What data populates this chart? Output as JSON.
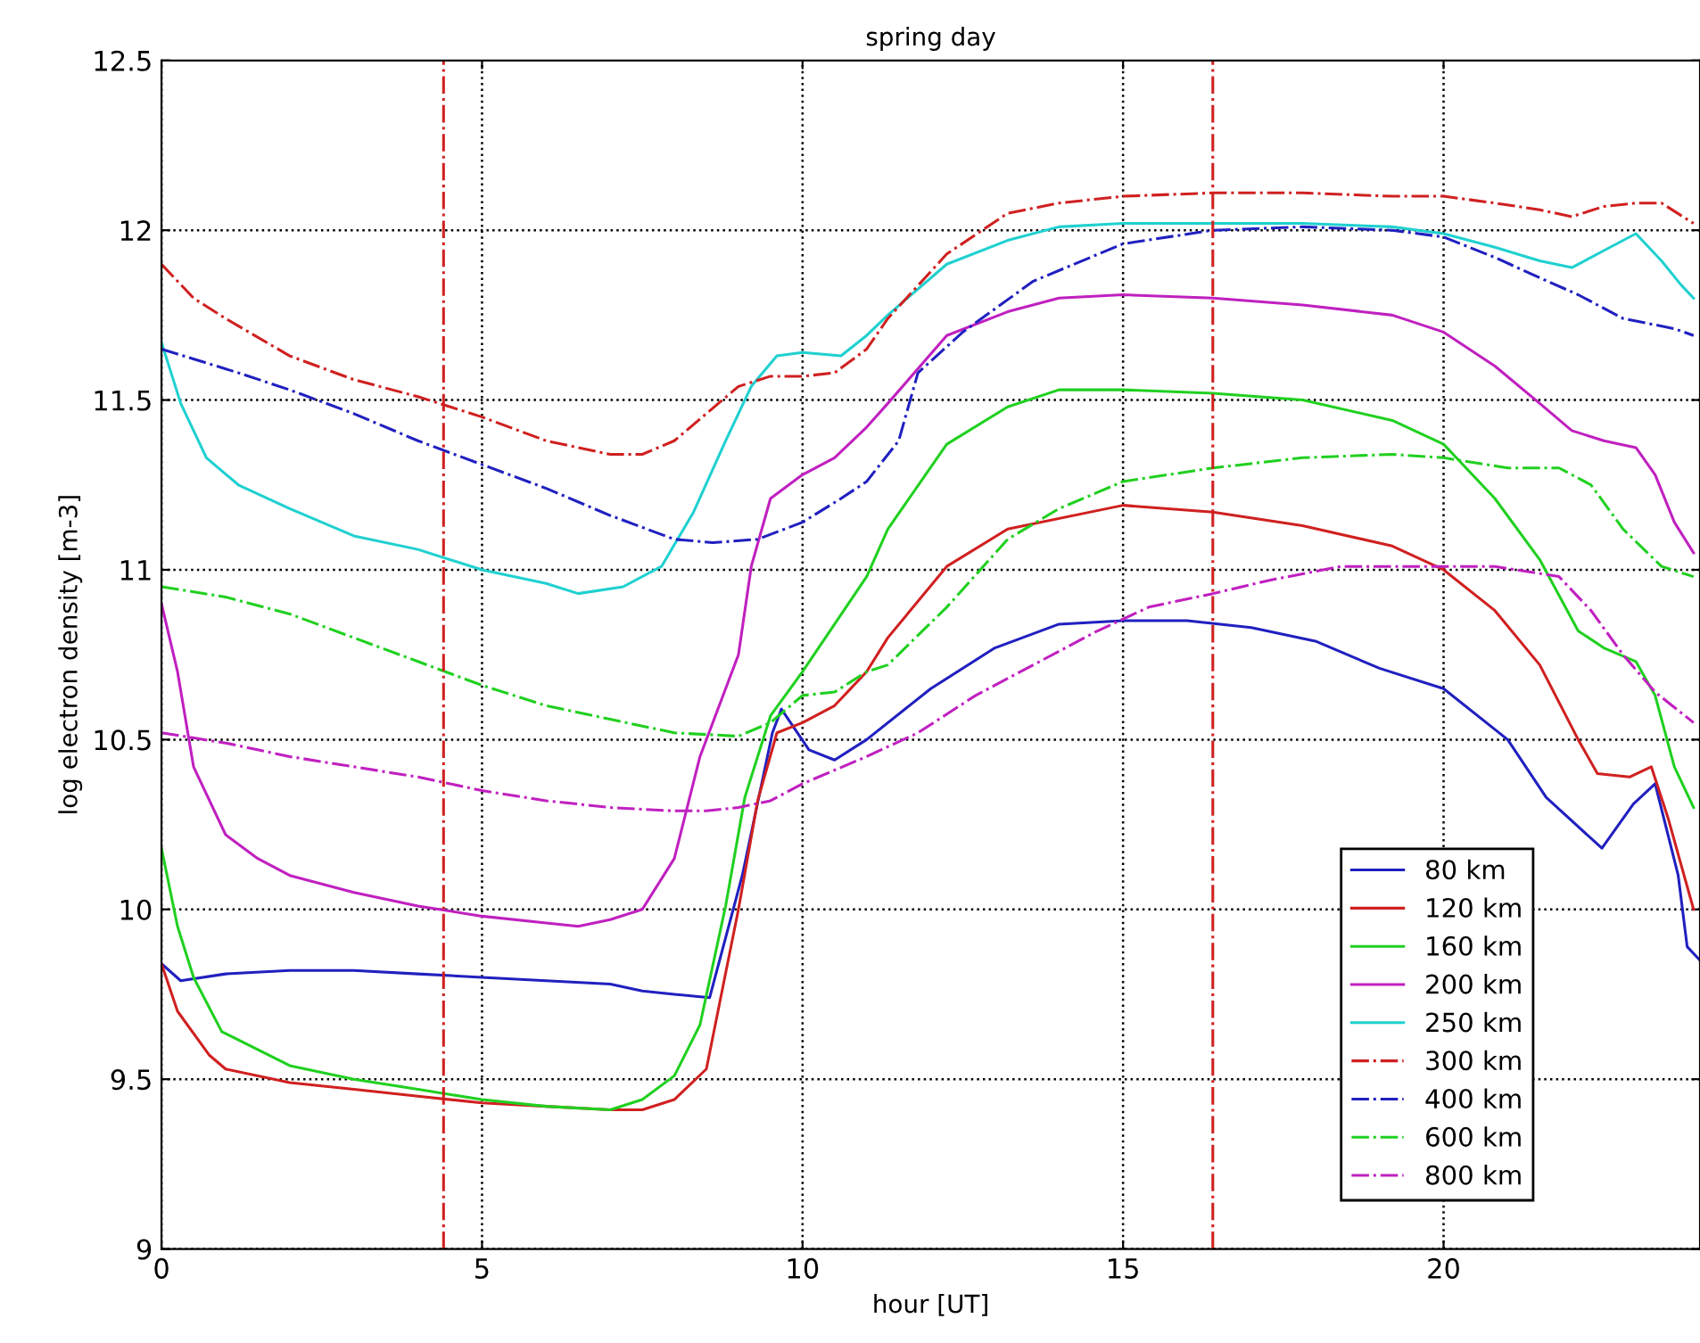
{
  "chart_data": {
    "type": "line",
    "title": "spring day",
    "xlabel": "hour [UT]",
    "ylabel": "log electron density [m-3]",
    "xlim": [
      0,
      24
    ],
    "ylim": [
      9,
      12.5
    ],
    "xticks": [
      0,
      5,
      10,
      15,
      20
    ],
    "yticks": [
      9,
      9.5,
      10,
      10.5,
      11,
      11.5,
      12,
      12.5
    ],
    "grid": true,
    "legend": "bottom right",
    "marker": "none",
    "ref_lines": [
      {
        "axis": "x",
        "value": 4.4,
        "label": null,
        "color": "#d02020",
        "line_style": "dashdot"
      },
      {
        "axis": "x",
        "value": 16.4,
        "label": null,
        "color": "#d02020",
        "line_style": "dashdot"
      }
    ],
    "series": [
      {
        "name": "80 km",
        "color": "#2020c0",
        "line_style": "solid",
        "x": [
          0,
          0.3,
          1,
          2,
          3,
          4,
          5,
          6,
          7,
          7.5,
          8,
          8.55,
          9.06,
          9.53,
          9.67,
          10.1,
          10.5,
          11,
          12,
          13,
          14,
          15,
          16,
          17,
          18,
          19,
          20,
          21,
          21.6,
          22.47,
          22.96,
          23.3,
          23.66,
          23.8,
          24
        ],
        "values": [
          9.84,
          9.79,
          9.81,
          9.82,
          9.82,
          9.81,
          9.8,
          9.79,
          9.78,
          9.76,
          9.75,
          9.74,
          10.1,
          10.52,
          10.59,
          10.47,
          10.44,
          10.5,
          10.65,
          10.77,
          10.84,
          10.85,
          10.85,
          10.83,
          10.79,
          10.71,
          10.65,
          10.5,
          10.33,
          10.18,
          10.31,
          10.37,
          10.1,
          9.89,
          9.85
        ]
      },
      {
        "name": "120 km",
        "color": "#d02020",
        "line_style": "solid",
        "x": [
          0,
          0.25,
          0.75,
          1,
          2,
          3,
          4,
          5,
          6,
          7,
          7.5,
          8,
          8.5,
          9,
          9.3,
          9.6,
          10,
          10.5,
          11,
          11.33,
          12.25,
          13.2,
          15,
          16.4,
          17.8,
          19.2,
          20,
          20.8,
          21.5,
          22.1,
          22.4,
          22.9,
          23.24,
          23.5,
          23.9
        ],
        "values": [
          9.84,
          9.7,
          9.57,
          9.53,
          9.49,
          9.47,
          9.45,
          9.43,
          9.42,
          9.41,
          9.41,
          9.44,
          9.53,
          10.0,
          10.32,
          10.52,
          10.55,
          10.6,
          10.7,
          10.8,
          11.01,
          11.12,
          11.19,
          11.17,
          11.13,
          11.07,
          11.0,
          10.88,
          10.72,
          10.5,
          10.4,
          10.39,
          10.42,
          10.27,
          10.0
        ]
      },
      {
        "name": "160 km",
        "color": "#20d020",
        "line_style": "solid",
        "x": [
          0,
          0.25,
          0.5,
          0.94,
          2,
          3,
          4,
          5,
          6,
          7,
          7.5,
          8,
          8.4,
          8.8,
          9.1,
          9.5,
          10,
          11,
          11.33,
          12.25,
          13.2,
          14,
          15,
          16.4,
          17.8,
          19.2,
          20,
          20.8,
          21.5,
          22.1,
          22.5,
          23,
          23.3,
          23.6,
          23.9
        ],
        "values": [
          10.18,
          9.95,
          9.8,
          9.64,
          9.54,
          9.5,
          9.47,
          9.44,
          9.42,
          9.41,
          9.44,
          9.51,
          9.66,
          10.01,
          10.33,
          10.57,
          10.7,
          10.98,
          11.12,
          11.37,
          11.48,
          11.53,
          11.53,
          11.52,
          11.5,
          11.44,
          11.37,
          11.21,
          11.03,
          10.82,
          10.77,
          10.73,
          10.63,
          10.42,
          10.3
        ]
      },
      {
        "name": "200 km",
        "color": "#c020c0",
        "line_style": "solid",
        "x": [
          0,
          0.25,
          0.5,
          1,
          1.5,
          2,
          3,
          4,
          5,
          6,
          6.5,
          7,
          7.5,
          8,
          8.4,
          9,
          9.2,
          9.5,
          10,
          10.5,
          11,
          11.33,
          12.25,
          13.2,
          14,
          15,
          16.4,
          17.8,
          19.2,
          20,
          20.8,
          21.5,
          22,
          22.5,
          23,
          23.3,
          23.6,
          23.9
        ],
        "values": [
          10.9,
          10.7,
          10.42,
          10.22,
          10.15,
          10.1,
          10.05,
          10.01,
          9.98,
          9.96,
          9.95,
          9.97,
          10.0,
          10.15,
          10.45,
          10.75,
          11.01,
          11.21,
          11.28,
          11.33,
          11.42,
          11.49,
          11.69,
          11.76,
          11.8,
          11.81,
          11.8,
          11.78,
          11.75,
          11.7,
          11.6,
          11.49,
          11.41,
          11.38,
          11.36,
          11.28,
          11.14,
          11.05
        ]
      },
      {
        "name": "250 km",
        "color": "#20d0d0",
        "line_style": "solid",
        "x": [
          0,
          0.3,
          0.7,
          1.2,
          2,
          3,
          4,
          5,
          6,
          6.5,
          7.2,
          7.8,
          8.3,
          8.8,
          9.2,
          9.6,
          10,
          10.6,
          11,
          11.33,
          12.25,
          13.2,
          14,
          15,
          16.4,
          17.8,
          19.2,
          20,
          20.8,
          21.5,
          22,
          22.5,
          23,
          23.4,
          23.7,
          23.9
        ],
        "values": [
          11.67,
          11.49,
          11.33,
          11.25,
          11.18,
          11.1,
          11.06,
          11.0,
          10.96,
          10.93,
          10.95,
          11.01,
          11.17,
          11.38,
          11.54,
          11.63,
          11.64,
          11.63,
          11.69,
          11.75,
          11.9,
          11.97,
          12.01,
          12.02,
          12.02,
          12.02,
          12.01,
          11.99,
          11.95,
          11.91,
          11.89,
          11.94,
          11.99,
          11.91,
          11.84,
          11.8
        ]
      },
      {
        "name": "300 km",
        "color": "#d02020",
        "line_style": "dashdot",
        "x": [
          0,
          0.5,
          1,
          2,
          3,
          4,
          5,
          6,
          7,
          7.5,
          8,
          8.5,
          9,
          9.5,
          10,
          10.5,
          11,
          11.33,
          12.25,
          13.2,
          14,
          15,
          16.4,
          17.8,
          19.2,
          20,
          20.8,
          21.5,
          22,
          22.5,
          23,
          23.4,
          23.9
        ],
        "values": [
          11.9,
          11.8,
          11.74,
          11.63,
          11.56,
          11.51,
          11.45,
          11.38,
          11.34,
          11.34,
          11.38,
          11.46,
          11.54,
          11.57,
          11.57,
          11.58,
          11.65,
          11.74,
          11.93,
          12.05,
          12.08,
          12.1,
          12.11,
          12.11,
          12.1,
          12.1,
          12.08,
          12.06,
          12.04,
          12.07,
          12.08,
          12.08,
          12.02
        ]
      },
      {
        "name": "400 km",
        "color": "#2020c0",
        "line_style": "dashdot",
        "x": [
          0,
          1.2,
          2,
          3,
          4,
          5,
          6,
          7,
          8,
          8.6,
          9.3,
          10,
          10.6,
          11,
          11.5,
          11.8,
          12.5,
          13.6,
          15,
          16.4,
          17.8,
          19.2,
          20,
          20.8,
          21.5,
          22.1,
          22.8,
          23.6,
          23.9
        ],
        "values": [
          11.65,
          11.58,
          11.53,
          11.46,
          11.38,
          11.31,
          11.24,
          11.16,
          11.09,
          11.08,
          11.09,
          11.14,
          11.21,
          11.26,
          11.38,
          11.58,
          11.7,
          11.85,
          11.96,
          12.0,
          12.01,
          12.0,
          11.98,
          11.92,
          11.86,
          11.81,
          11.74,
          11.71,
          11.69
        ]
      },
      {
        "name": "600 km",
        "color": "#20d020",
        "line_style": "dashdot",
        "x": [
          0,
          1,
          2,
          3,
          4,
          5,
          6,
          7,
          8,
          9,
          9.5,
          10,
          10.5,
          11,
          11.33,
          12.25,
          13.2,
          14,
          15,
          16.4,
          17.8,
          19.2,
          20,
          21,
          21.8,
          22.3,
          22.8,
          23.4,
          23.9
        ],
        "values": [
          10.95,
          10.92,
          10.87,
          10.8,
          10.73,
          10.66,
          10.6,
          10.56,
          10.52,
          10.51,
          10.55,
          10.63,
          10.64,
          10.7,
          10.72,
          10.89,
          11.09,
          11.18,
          11.26,
          11.3,
          11.33,
          11.34,
          11.33,
          11.3,
          11.3,
          11.25,
          11.12,
          11.01,
          10.98
        ]
      },
      {
        "name": "800 km",
        "color": "#c020c0",
        "line_style": "dashdot",
        "x": [
          0,
          1,
          2,
          3,
          4,
          5,
          6,
          7,
          8,
          8.5,
          9,
          9.5,
          10,
          11,
          11.8,
          12.7,
          13.6,
          14.6,
          15.4,
          16.4,
          17.3,
          18.4,
          19.5,
          20.8,
          21.8,
          22.3,
          22.8,
          23.3,
          23.9
        ],
        "values": [
          10.52,
          10.49,
          10.45,
          10.42,
          10.39,
          10.35,
          10.32,
          10.3,
          10.29,
          10.29,
          10.3,
          10.32,
          10.37,
          10.45,
          10.52,
          10.63,
          10.72,
          10.82,
          10.89,
          10.93,
          10.97,
          11.01,
          11.01,
          11.01,
          10.98,
          10.88,
          10.75,
          10.64,
          10.55
        ]
      }
    ]
  }
}
